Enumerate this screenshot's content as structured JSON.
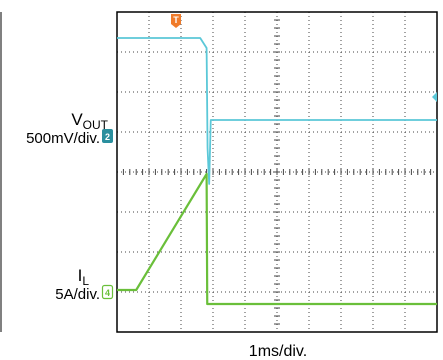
{
  "chart_data": {
    "type": "line",
    "title": "",
    "xlabel": "1ms/div.",
    "x_divisions": 10,
    "y_divisions": 8,
    "xlim": [
      0,
      10
    ],
    "ylim": [
      -4,
      4
    ],
    "grid": true,
    "trigger_marker": "T",
    "series": [
      {
        "name": "VOUT",
        "name_main": "V",
        "name_sub": "OUT",
        "scale": "500mV/div.",
        "channel": "2",
        "color": "#5bc8d8",
        "points": [
          [
            0,
            3.35
          ],
          [
            2.6,
            3.35
          ],
          [
            2.8,
            3.1
          ],
          [
            2.83,
            0.6
          ],
          [
            2.88,
            -0.3
          ],
          [
            2.93,
            1.3
          ],
          [
            3.0,
            1.3
          ],
          [
            10,
            1.3
          ]
        ]
      },
      {
        "name": "IL",
        "name_main": "I",
        "name_sub": "L",
        "scale": "5A/div.",
        "channel": "4",
        "color": "#6abf3a",
        "points": [
          [
            0,
            -2.95
          ],
          [
            0.6,
            -2.95
          ],
          [
            2.8,
            -0.05
          ],
          [
            2.82,
            -3.3
          ],
          [
            10,
            -3.3
          ]
        ]
      }
    ]
  }
}
